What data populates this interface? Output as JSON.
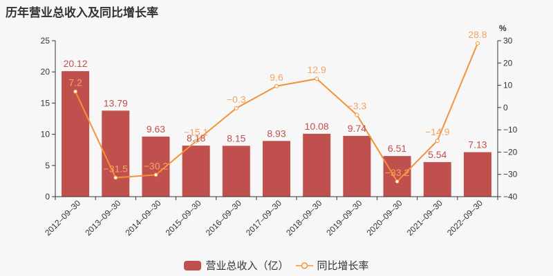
{
  "title": "历年营业总收入及同比增长率",
  "legend": {
    "bar_label": "营业总收入（亿）",
    "line_label": "同比增长率"
  },
  "colors": {
    "bar": "#c0504d",
    "line": "#f4923a",
    "line_label": "#f4a460",
    "bar_label": "#c0504d",
    "axis": "#333333",
    "background": "#f7f7f7"
  },
  "chart_data": {
    "type": "bar+line",
    "title": "历年营业总收入及同比增长率",
    "categories": [
      "2012-09-30",
      "2013-09-30",
      "2014-09-30",
      "2015-09-30",
      "2016-09-30",
      "2017-09-30",
      "2018-09-30",
      "2019-09-30",
      "2020-09-30",
      "2021-09-30",
      "2022-09-30"
    ],
    "series": [
      {
        "name": "营业总收入（亿）",
        "type": "bar",
        "axis": "left",
        "values": [
          20.12,
          13.79,
          9.63,
          8.18,
          8.15,
          8.93,
          10.08,
          9.74,
          6.51,
          5.54,
          7.13
        ]
      },
      {
        "name": "同比增长率",
        "type": "line",
        "axis": "right",
        "values": [
          7.2,
          -31.5,
          -30.2,
          -15.1,
          -0.3,
          9.6,
          12.9,
          -3.3,
          -33.2,
          -14.9,
          28.8
        ]
      }
    ],
    "left_axis": {
      "min": 0,
      "max": 25,
      "ticks": [
        0,
        5,
        10,
        15,
        20,
        25
      ],
      "label": ""
    },
    "right_axis": {
      "min": -40,
      "max": 30,
      "ticks": [
        -40,
        -30,
        -20,
        -10,
        0,
        10,
        20,
        30
      ],
      "label": "%"
    },
    "grid": false,
    "legend_position": "bottom"
  }
}
